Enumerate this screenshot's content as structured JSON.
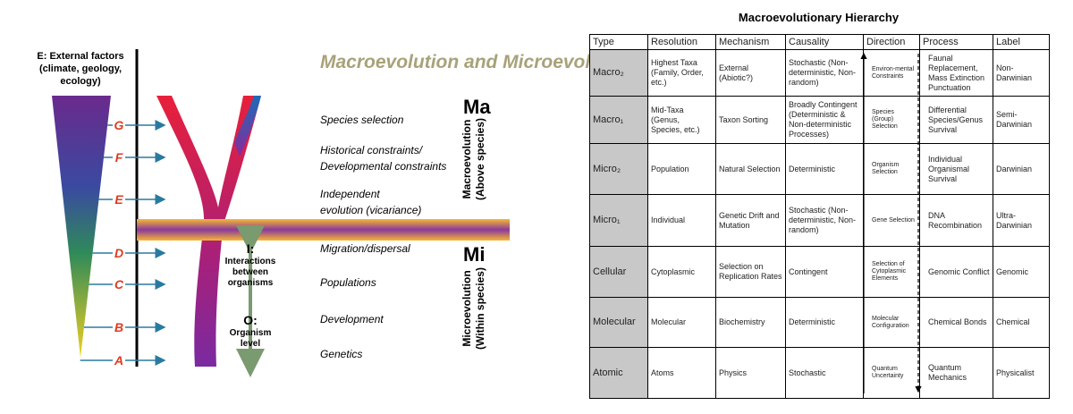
{
  "diagram": {
    "title": "Macroevolution and Microevolution",
    "external_factors": [
      "E: External factors",
      "(climate, geology,",
      "ecology)"
    ],
    "levels": [
      {
        "letter": "G",
        "lines": [
          "Species selection"
        ]
      },
      {
        "letter": "F",
        "lines": [
          "Historical constraints/",
          "Developmental constraints"
        ]
      },
      {
        "letter": "E",
        "lines": [
          "Independent",
          "evolution (vicariance)"
        ]
      },
      {
        "letter": "D",
        "lines": [
          "Migration/dispersal"
        ]
      },
      {
        "letter": "C",
        "lines": [
          "Populations"
        ]
      },
      {
        "letter": "B",
        "lines": [
          "Development"
        ]
      },
      {
        "letter": "A",
        "lines": [
          "Genetics"
        ]
      }
    ],
    "macro": {
      "abbr": "Ma",
      "lines": [
        "Macroevolution",
        "(Above species)"
      ]
    },
    "micro": {
      "abbr": "Mi",
      "lines": [
        "Microevolution",
        "(Within species)"
      ]
    },
    "interactions": [
      "I:",
      "Interactions",
      "between",
      "organisms"
    ],
    "organism": [
      "O:",
      "Organism",
      "level"
    ]
  },
  "table": {
    "title": "Macroevolutionary Hierarchy",
    "header": [
      "Type",
      "Resolution",
      "Mechanism",
      "Causality",
      "Direction",
      "Process",
      "Label"
    ],
    "rows": [
      [
        "Macro₂",
        "Highest Taxa (Family, Order, etc.)",
        "External (Abiotic?)",
        "Stochastic (Non-deterministic, Non-random)",
        "Environ-mental Constraints",
        "Faunal Replacement, Mass Extinction Punctuation",
        "Non-Darwinian"
      ],
      [
        "Macro₁",
        "Mid-Taxa (Genus, Species, etc.)",
        "Taxon Sorting",
        "Broadly Contingent (Deterministic & Non-deterministic Processes)",
        "Species (Group) Selection",
        "Differential Species/Genus Survival",
        "Semi-Darwinian"
      ],
      [
        "Micro₂",
        "Population",
        "Natural Selection",
        "Deterministic",
        "Organism Selection",
        "Individual Organismal Survival",
        "Darwinian"
      ],
      [
        "Micro₁",
        "Individual",
        "Genetic Drift and Mutation",
        "Stochastic (Non-deterministic, Non-random)",
        "Gene Selection",
        "DNA Recombination",
        "Ultra-Darwinian"
      ],
      [
        "Cellular",
        "Cytoplasmic",
        "Selection on Replication Rates",
        "Contingent",
        "Selection of Cytoplasmic Elements",
        "Genomic Conflict",
        "Genomic"
      ],
      [
        "Molecular",
        "Molecular",
        "Biochemistry",
        "Deterministic",
        "Molecular Configuration",
        "Chemical Bonds",
        "Chemical"
      ],
      [
        "Atomic",
        "Atoms",
        "Physics",
        "Stochastic",
        "Quantum Uncertainty",
        "Quantum Mechanics",
        "Physicalist"
      ]
    ]
  }
}
